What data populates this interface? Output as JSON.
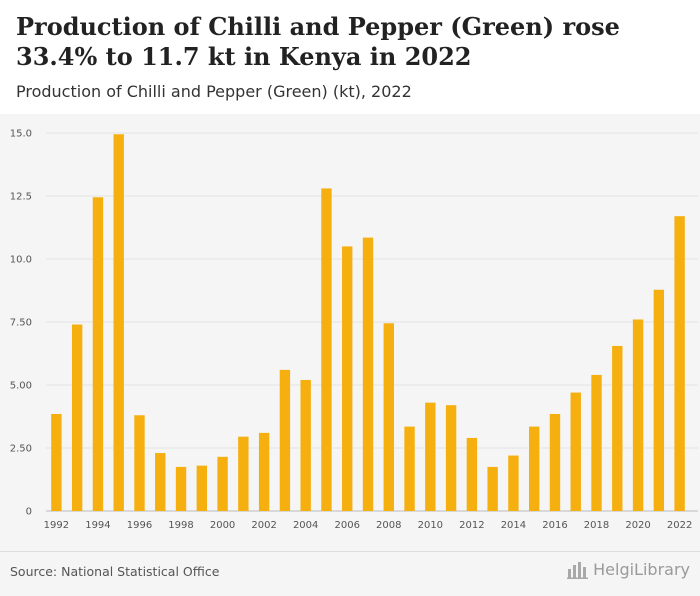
{
  "header": {
    "title": "Production of Chilli and Pepper (Green) rose 33.4% to 11.7 kt in Kenya in 2022",
    "subtitle": "Production of Chilli and Pepper (Green) (kt), 2022"
  },
  "footer": {
    "source": "Source: National Statistical Office",
    "logo_text": "HelgiLibrary",
    "logo_icon": "bar-chart-logo-icon"
  },
  "chart_data": {
    "type": "bar",
    "title": "Production of Chilli and Pepper (Green) rose 33.4% to 11.7 kt in Kenya in 2022",
    "subtitle": "Production of Chilli and Pepper (Green) (kt), 2022",
    "xlabel": "",
    "ylabel": "",
    "ylim": [
      0,
      15
    ],
    "yticks": [
      0,
      2.5,
      5,
      7.5,
      10,
      12.5,
      15
    ],
    "ytick_labels": [
      "0",
      "2.50",
      "5.00",
      "7.50",
      "10.0",
      "12.5",
      "15.0"
    ],
    "grid": true,
    "bar_color": "#f5b010",
    "categories": [
      1992,
      1993,
      1994,
      1995,
      1996,
      1997,
      1998,
      1999,
      2000,
      2001,
      2002,
      2003,
      2004,
      2005,
      2006,
      2007,
      2008,
      2009,
      2010,
      2011,
      2012,
      2013,
      2014,
      2015,
      2016,
      2017,
      2018,
      2019,
      2020,
      2021,
      2022
    ],
    "xtick_labels": [
      "1992",
      "1994",
      "1996",
      "1998",
      "2000",
      "2002",
      "2004",
      "2006",
      "2008",
      "2010",
      "2012",
      "2014",
      "2016",
      "2018",
      "2020",
      "2022"
    ],
    "values": [
      3.85,
      7.4,
      12.45,
      14.95,
      3.8,
      2.3,
      1.75,
      1.8,
      2.15,
      2.95,
      3.1,
      5.6,
      5.2,
      12.8,
      10.5,
      10.85,
      7.45,
      3.35,
      4.3,
      4.2,
      2.9,
      1.75,
      2.2,
      3.35,
      3.85,
      4.7,
      5.4,
      6.55,
      7.6,
      8.78,
      11.7
    ]
  }
}
